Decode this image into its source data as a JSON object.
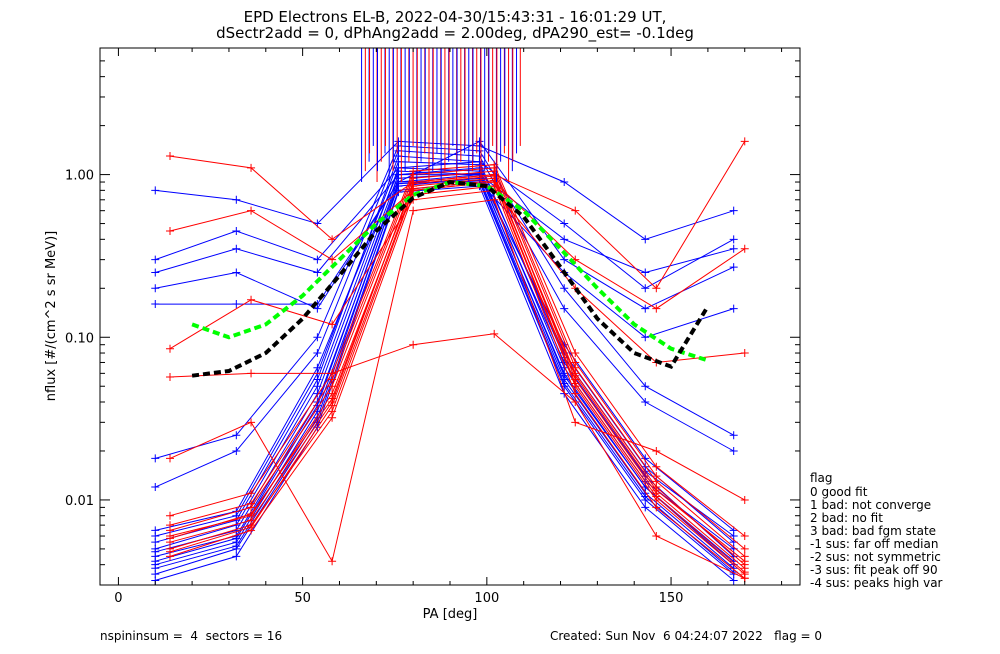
{
  "chart_data": {
    "type": "line",
    "title_line1": "EPD Electrons EL-B, 2022-04-30/15:43:31 - 16:01:29 UT,",
    "title_line2": "dSectr2add = 0, dPhAng2add = 2.00deg, dPA290_est=  -0.1deg",
    "xlabel": "PA [deg]",
    "ylabel": "nflux [#/(cm^2 s sr MeV)]",
    "xlim": [
      -5,
      185
    ],
    "ylim": [
      0.003,
      6.0
    ],
    "yscale": "log",
    "xticks": [
      0,
      50,
      100,
      150
    ],
    "xtick_labels": [
      "0",
      "50",
      "100",
      "150"
    ],
    "yticks": [
      0.01,
      0.1,
      1.0
    ],
    "ytick_labels": [
      "0.01",
      "0.10",
      "1.00"
    ],
    "series": [
      {
        "color": "#0000ff",
        "style": "thin-lines-with-plus-markers",
        "traces": [
          {
            "x": [
              10,
              32,
              54,
              76,
              98,
              121,
              143,
              167
            ],
            "y": [
              0.0045,
              0.006,
              0.04,
              0.9,
              1.0,
              0.06,
              0.012,
              0.004
            ]
          },
          {
            "x": [
              10,
              32,
              54,
              76,
              98,
              121,
              143,
              167
            ],
            "y": [
              0.005,
              0.007,
              0.05,
              1.1,
              1.05,
              0.07,
              0.014,
              0.0045
            ]
          },
          {
            "x": [
              10,
              32,
              54,
              76,
              98,
              121,
              143,
              167
            ],
            "y": [
              0.004,
              0.0055,
              0.035,
              0.85,
              0.95,
              0.055,
              0.011,
              0.0038
            ]
          },
          {
            "x": [
              10,
              32,
              54,
              76,
              98,
              121,
              143,
              167
            ],
            "y": [
              0.0048,
              0.0065,
              0.045,
              1.0,
              1.1,
              0.065,
              0.013,
              0.005
            ]
          },
          {
            "x": [
              10,
              32,
              54,
              76,
              98,
              121,
              143,
              167
            ],
            "y": [
              0.0035,
              0.005,
              0.03,
              0.8,
              0.9,
              0.05,
              0.01,
              0.0035
            ]
          },
          {
            "x": [
              10,
              32,
              54,
              76,
              98,
              121,
              143,
              167
            ],
            "y": [
              0.006,
              0.008,
              0.06,
              1.2,
              1.15,
              0.08,
              0.016,
              0.0055
            ]
          },
          {
            "x": [
              10,
              32,
              54,
              76,
              98,
              121,
              143,
              167
            ],
            "y": [
              0.0055,
              0.0075,
              0.055,
              1.3,
              1.2,
              0.075,
              0.015,
              0.006
            ]
          },
          {
            "x": [
              10,
              32,
              54,
              76,
              98,
              121,
              143,
              167
            ],
            "y": [
              0.0042,
              0.0058,
              0.038,
              0.95,
              1.02,
              0.058,
              0.012,
              0.0042
            ]
          },
          {
            "x": [
              10,
              32,
              54,
              76,
              98,
              121,
              143,
              167
            ],
            "y": [
              0.018,
              0.025,
              0.1,
              1.5,
              1.4,
              0.2,
              0.05,
              0.025
            ]
          },
          {
            "x": [
              10,
              32,
              54,
              76,
              98,
              121,
              143,
              167
            ],
            "y": [
              0.012,
              0.02,
              0.08,
              1.4,
              1.3,
              0.15,
              0.04,
              0.02
            ]
          },
          {
            "x": [
              10,
              32,
              54,
              76,
              98,
              121,
              143,
              167
            ],
            "y": [
              0.0065,
              0.0085,
              0.065,
              1.05,
              1.0,
              0.09,
              0.018,
              0.0065
            ]
          },
          {
            "x": [
              10,
              32,
              54,
              76,
              98,
              121,
              143,
              167
            ],
            "y": [
              0.0038,
              0.0052,
              0.032,
              0.88,
              0.92,
              0.052,
              0.0105,
              0.0036
            ]
          },
          {
            "x": [
              10,
              32,
              54,
              76,
              98,
              121,
              143,
              167
            ],
            "y": [
              0.8,
              0.7,
              0.5,
              1.6,
              1.5,
              0.9,
              0.4,
              0.6
            ]
          },
          {
            "x": [
              10,
              32,
              54,
              76,
              98,
              121,
              143,
              167
            ],
            "y": [
              0.3,
              0.45,
              0.3,
              1.1,
              1.2,
              0.5,
              0.2,
              0.4
            ]
          },
          {
            "x": [
              10,
              32,
              54,
              76,
              98,
              121,
              143,
              167
            ],
            "y": [
              0.25,
              0.35,
              0.25,
              1.0,
              1.0,
              0.4,
              0.25,
              0.35
            ]
          },
          {
            "x": [
              10,
              32,
              54,
              76,
              98,
              121,
              143,
              167
            ],
            "y": [
              0.16,
              0.16,
              0.16,
              0.9,
              1.6,
              0.3,
              0.15,
              0.27
            ]
          },
          {
            "x": [
              10,
              32,
              54,
              76,
              98,
              121,
              143,
              167
            ],
            "y": [
              0.2,
              0.25,
              0.15,
              0.9,
              0.9,
              0.25,
              0.1,
              0.15
            ]
          },
          {
            "x": [
              10,
              32,
              54,
              76,
              98,
              121,
              143,
              167
            ],
            "y": [
              0.0032,
              0.0045,
              0.028,
              0.78,
              0.85,
              0.045,
              0.009,
              0.0032
            ]
          }
        ]
      },
      {
        "color": "#ff0000",
        "style": "thin-lines-with-plus-markers",
        "traces": [
          {
            "x": [
              14,
              36,
              58,
              80,
              102,
              124,
              146,
              170
            ],
            "y": [
              0.006,
              0.008,
              0.045,
              0.85,
              0.95,
              0.06,
              0.012,
              0.004
            ]
          },
          {
            "x": [
              14,
              36,
              58,
              80,
              102,
              124,
              146,
              170
            ],
            "y": [
              0.0055,
              0.0075,
              0.04,
              0.9,
              1.0,
              0.055,
              0.011,
              0.0038
            ]
          },
          {
            "x": [
              14,
              36,
              58,
              80,
              102,
              124,
              146,
              170
            ],
            "y": [
              0.0065,
              0.009,
              0.05,
              0.95,
              1.05,
              0.065,
              0.013,
              0.0045
            ]
          },
          {
            "x": [
              14,
              36,
              58,
              80,
              102,
              124,
              146,
              170
            ],
            "y": [
              0.005,
              0.007,
              0.035,
              0.8,
              0.9,
              0.05,
              0.01,
              0.0035
            ]
          },
          {
            "x": [
              14,
              36,
              58,
              80,
              102,
              124,
              146,
              170
            ],
            "y": [
              0.007,
              0.0095,
              0.055,
              1.0,
              1.1,
              0.07,
              0.014,
              0.005
            ]
          },
          {
            "x": [
              14,
              36,
              58,
              80,
              102,
              124,
              146,
              170
            ],
            "y": [
              0.0045,
              0.0065,
              0.032,
              0.75,
              0.85,
              0.045,
              0.009,
              0.0033
            ]
          },
          {
            "x": [
              14,
              36,
              58,
              80,
              102,
              124,
              146,
              170
            ],
            "y": [
              0.008,
              0.011,
              0.06,
              1.05,
              1.15,
              0.08,
              0.016,
              0.006
            ]
          },
          {
            "x": [
              14,
              36,
              58,
              80,
              102,
              124,
              146,
              170
            ],
            "y": [
              0.0058,
              0.0082,
              0.042,
              0.88,
              0.98,
              0.058,
              0.0115,
              0.0042
            ]
          },
          {
            "x": [
              14,
              36,
              58,
              80,
              102,
              124,
              146,
              170
            ],
            "y": [
              1.3,
              1.1,
              0.4,
              0.9,
              1.0,
              0.6,
              0.2,
              1.6
            ]
          },
          {
            "x": [
              14,
              36,
              58,
              80,
              102,
              124,
              146,
              170
            ],
            "y": [
              0.45,
              0.6,
              0.3,
              0.8,
              0.9,
              0.3,
              0.15,
              0.35
            ]
          },
          {
            "x": [
              14,
              36,
              58,
              80,
              102,
              124,
              146,
              170
            ],
            "y": [
              0.085,
              0.17,
              0.12,
              0.7,
              0.8,
              0.2,
              0.07,
              0.08
            ]
          },
          {
            "x": [
              14,
              36,
              58,
              80,
              102,
              124,
              146,
              170
            ],
            "y": [
              0.057,
              0.06,
              0.06,
              0.09,
              0.105,
              0.04,
              0.006,
              0.0033
            ]
          },
          {
            "x": [
              14,
              36,
              58,
              80,
              102,
              124,
              146,
              170
            ],
            "y": [
              0.018,
              0.03,
              0.0042,
              0.6,
              0.7,
              0.03,
              0.02,
              0.01
            ]
          },
          {
            "x": [
              14,
              36,
              58,
              80,
              102,
              124,
              146,
              170
            ],
            "y": [
              0.0048,
              0.0068,
              0.038,
              0.82,
              0.92,
              0.052,
              0.0105,
              0.0036
            ]
          }
        ]
      },
      {
        "name": "",
        "color": "#00ff00",
        "style": "thick-dashed",
        "x": [
          20,
          30,
          40,
          50,
          60,
          70,
          80,
          90,
          100,
          110,
          120,
          130,
          140,
          150,
          160
        ],
        "y": [
          0.12,
          0.1,
          0.12,
          0.18,
          0.3,
          0.5,
          0.75,
          0.9,
          0.85,
          0.6,
          0.35,
          0.2,
          0.12,
          0.085,
          0.072
        ]
      },
      {
        "name": "",
        "color": "#000000",
        "style": "thick-dashed",
        "x": [
          20,
          30,
          40,
          50,
          60,
          70,
          80,
          90,
          100,
          110,
          120,
          130,
          140,
          150,
          160
        ],
        "y": [
          0.058,
          0.062,
          0.08,
          0.13,
          0.24,
          0.45,
          0.72,
          0.9,
          0.85,
          0.55,
          0.27,
          0.13,
          0.08,
          0.066,
          0.155
        ]
      }
    ],
    "legend": {
      "placement": "right-outside",
      "title": "flag",
      "entries": [
        " 0 good fit",
        " 1 bad: not converge",
        " 2 bad: no fit",
        " 3 bad: bad fgm state",
        "-1 sus: far off median",
        "-2 sus: not symmetric",
        "-3 sus: fit peak off 90",
        "-4 sus: peaks high var"
      ]
    },
    "grid": false
  },
  "footer": {
    "left": "nspininsum =  4  sectors = 16",
    "right": "Created: Sun Nov  6 04:24:07 2022   flag = 0"
  }
}
